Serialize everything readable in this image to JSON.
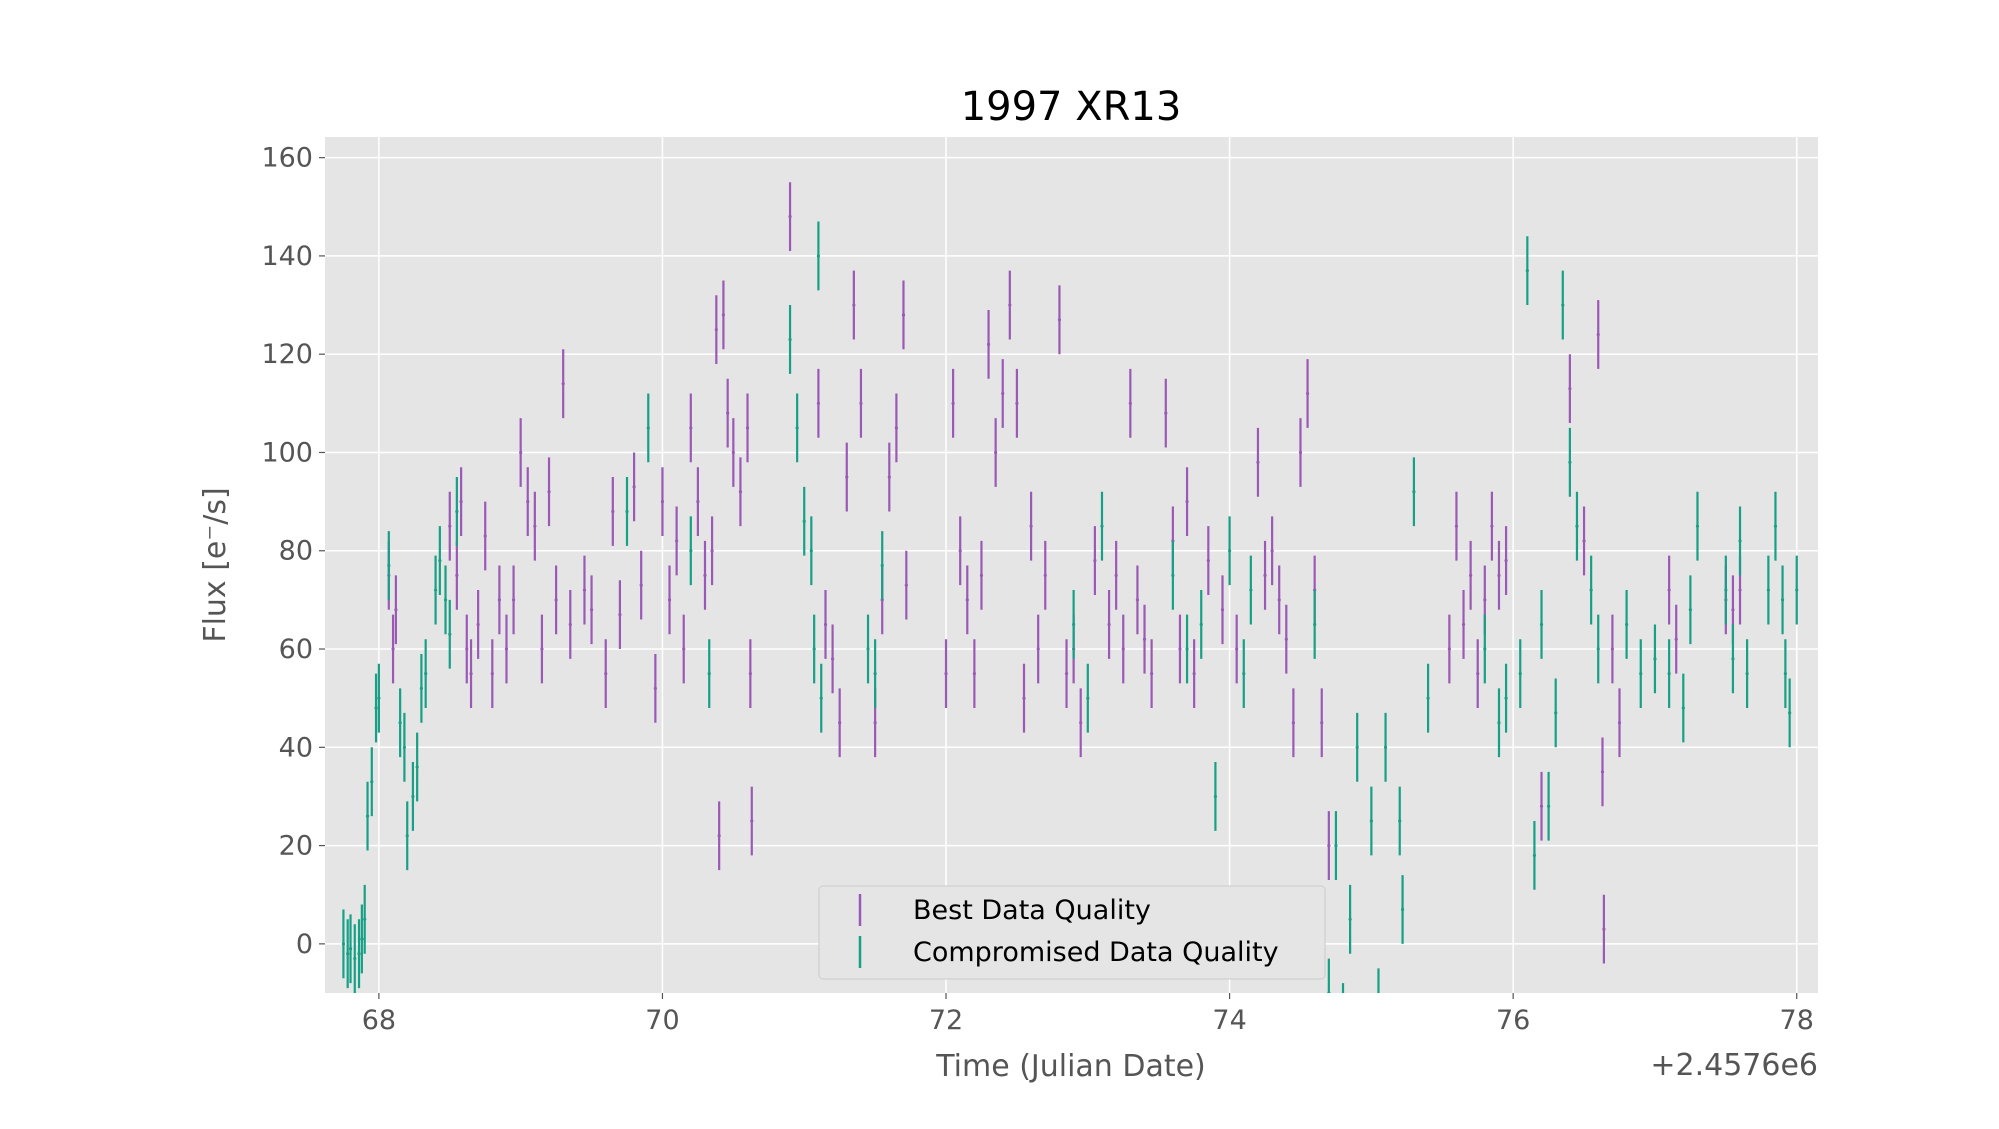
{
  "chart_data": {
    "type": "errorbar",
    "title": "1997 XR13",
    "xlabel": "Time (Julian Date)",
    "ylabel": "Flux [e⁻/s]",
    "x_offset_label": "+2.4576e6",
    "xlim": [
      67.62,
      78.15
    ],
    "ylim": [
      -10,
      164.2
    ],
    "xticks": [
      68,
      70,
      72,
      74,
      76,
      78
    ],
    "yticks": [
      0,
      20,
      40,
      60,
      80,
      100,
      120,
      140,
      160
    ],
    "grid": true,
    "legend": "lower center",
    "series": [
      {
        "name": "Best Data Quality",
        "color": "#9b59b6",
        "yerr": 7,
        "x": [
          68.07,
          68.1,
          68.12,
          68.5,
          68.55,
          68.58,
          68.62,
          68.65,
          68.7,
          68.75,
          68.8,
          68.85,
          68.9,
          68.95,
          69.0,
          69.05,
          69.1,
          69.15,
          69.2,
          69.25,
          69.3,
          69.35,
          69.45,
          69.5,
          69.6,
          69.65,
          69.7,
          69.8,
          69.85,
          69.95,
          70.0,
          70.05,
          70.1,
          70.15,
          70.2,
          70.25,
          70.3,
          70.35,
          70.38,
          70.4,
          70.43,
          70.46,
          70.5,
          70.55,
          70.6,
          70.62,
          70.63,
          70.9,
          71.1,
          71.15,
          71.2,
          71.25,
          71.3,
          71.35,
          71.4,
          71.5,
          71.55,
          71.6,
          71.65,
          71.7,
          71.72,
          72.0,
          72.05,
          72.1,
          72.15,
          72.2,
          72.25,
          72.3,
          72.35,
          72.4,
          72.45,
          72.5,
          72.55,
          72.6,
          72.65,
          72.7,
          72.8,
          72.85,
          72.9,
          72.95,
          73.05,
          73.15,
          73.2,
          73.25,
          73.3,
          73.35,
          73.4,
          73.45,
          73.55,
          73.6,
          73.65,
          73.7,
          73.75,
          73.85,
          73.95,
          74.05,
          74.2,
          74.25,
          74.3,
          74.35,
          74.4,
          74.45,
          74.5,
          74.55,
          74.6,
          74.65,
          74.7,
          75.55,
          75.6,
          75.65,
          75.7,
          75.75,
          75.8,
          75.85,
          75.9,
          75.95,
          76.2,
          76.4,
          76.5,
          76.6,
          76.63,
          76.64,
          76.7,
          76.75,
          77.1,
          77.15,
          77.5,
          77.55,
          77.6
        ],
        "y": [
          75,
          60,
          68,
          85,
          75,
          90,
          60,
          55,
          65,
          83,
          55,
          70,
          60,
          70,
          100,
          90,
          85,
          60,
          92,
          70,
          114,
          65,
          72,
          68,
          55,
          88,
          67,
          93,
          73,
          52,
          90,
          70,
          82,
          60,
          105,
          90,
          75,
          80,
          125,
          22,
          128,
          108,
          100,
          92,
          105,
          55,
          25,
          148,
          110,
          65,
          58,
          45,
          95,
          130,
          110,
          45,
          70,
          95,
          105,
          128,
          73,
          55,
          110,
          80,
          70,
          55,
          75,
          122,
          100,
          112,
          130,
          110,
          50,
          85,
          60,
          75,
          127,
          55,
          60,
          45,
          78,
          65,
          75,
          60,
          110,
          70,
          62,
          55,
          108,
          82,
          60,
          90,
          55,
          78,
          68,
          60,
          98,
          75,
          80,
          70,
          62,
          45,
          100,
          112,
          72,
          45,
          20,
          60,
          85,
          65,
          75,
          55,
          70,
          85,
          75,
          78,
          28,
          113,
          82,
          124,
          35,
          3,
          60,
          45,
          72,
          62,
          70,
          68,
          72
        ]
      },
      {
        "name": "Compromised Data Quality",
        "color": "#16a085",
        "yerr": 7,
        "x": [
          67.75,
          67.78,
          67.8,
          67.83,
          67.86,
          67.88,
          67.9,
          67.92,
          67.95,
          67.98,
          68.0,
          68.07,
          68.15,
          68.18,
          68.2,
          68.24,
          68.27,
          68.3,
          68.33,
          68.4,
          68.43,
          68.47,
          68.5,
          68.55,
          69.75,
          69.9,
          70.2,
          70.33,
          70.9,
          70.95,
          71.0,
          71.05,
          71.1,
          71.07,
          71.12,
          71.45,
          71.5,
          71.55,
          72.9,
          73.0,
          73.1,
          73.6,
          73.7,
          73.8,
          73.9,
          74.0,
          74.1,
          74.15,
          74.6,
          74.7,
          74.75,
          74.8,
          74.85,
          74.9,
          75.0,
          75.05,
          75.1,
          75.2,
          75.22,
          75.3,
          75.4,
          75.8,
          75.9,
          75.95,
          76.05,
          76.1,
          76.15,
          76.2,
          76.25,
          76.3,
          76.35,
          76.4,
          76.45,
          76.55,
          76.6,
          76.8,
          76.9,
          77.0,
          77.1,
          77.2,
          77.25,
          77.3,
          77.5,
          77.55,
          77.6,
          77.65,
          77.8,
          77.85,
          77.9,
          77.92,
          77.95,
          78.0
        ],
        "y": [
          0,
          -2,
          -1,
          -3,
          -2,
          1,
          5,
          26,
          33,
          48,
          50,
          77,
          45,
          40,
          22,
          30,
          36,
          52,
          55,
          72,
          78,
          70,
          63,
          88,
          88,
          105,
          80,
          55,
          123,
          105,
          86,
          80,
          140,
          60,
          50,
          60,
          55,
          77,
          65,
          50,
          85,
          75,
          60,
          65,
          30,
          80,
          55,
          72,
          65,
          -10,
          20,
          -15,
          5,
          40,
          25,
          -12,
          40,
          25,
          7,
          92,
          50,
          60,
          45,
          50,
          55,
          137,
          18,
          65,
          28,
          47,
          130,
          98,
          85,
          72,
          60,
          65,
          55,
          58,
          55,
          48,
          68,
          85,
          72,
          58,
          82,
          55,
          72,
          85,
          70,
          55,
          47,
          72
        ]
      }
    ]
  }
}
